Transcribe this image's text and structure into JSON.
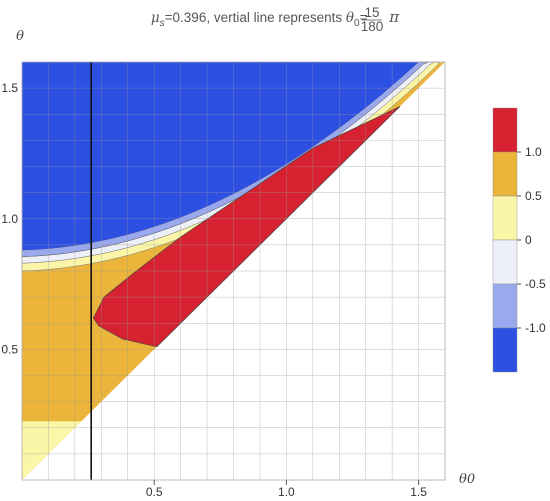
{
  "title": {
    "mu_symbol": "μ",
    "mu_subscript": "s",
    "mu_value": "=0.396, vertial line represents ",
    "theta_symbol": "θ",
    "theta_subscript": "0",
    "equals": "=",
    "frac_num": "15",
    "frac_den": "180",
    "pi": "π"
  },
  "chart_data": {
    "type": "contour",
    "xlabel": "θ0",
    "ylabel": "θ",
    "xlim": [
      0,
      1.6
    ],
    "ylim": [
      0,
      1.6
    ],
    "x_ticks": [
      "0.5",
      "1.0",
      "1.5"
    ],
    "x_tick_values": [
      0.5,
      1.0,
      1.5
    ],
    "y_ticks": [
      "0.5",
      "1.0",
      "1.5"
    ],
    "y_tick_values": [
      0.5,
      1.0,
      1.5
    ],
    "grid": true,
    "vertical_line_x": 0.2618,
    "legend": {
      "placement": "right",
      "levels": [
        "1.0",
        "0.5",
        "0",
        "-0.5",
        "-1.0"
      ],
      "level_values": [
        1.0,
        0.5,
        0,
        -0.5,
        -1.0
      ],
      "colors": [
        "#d62230",
        "#ebb43a",
        "#fbf5a8",
        "#eef0f8",
        "#9aa9ee",
        "#2d50e3"
      ]
    },
    "regions": [
      {
        "band": "below -1.0",
        "color": "#2d50e3",
        "shape": "upper-left region above θ ≈ 0.87 + 0.55·θ0²-like curve"
      },
      {
        "band": "-1.0 to 0.5 (thin bands)",
        "colors": [
          "#9aa9ee",
          "#eef0f8",
          "#fbf5a8"
        ]
      },
      {
        "band": "0.5 to 1.0",
        "color": "#ebb43a",
        "shape": "region between diagonal θ = θ0 and blue boundary"
      },
      {
        "band": "above 1.0",
        "color": "#d62230",
        "shape": "wedge from (0.27, 0.62) to (1.43, 1.43)"
      },
      {
        "band": "0 to 0.5",
        "color": "#fbf5a8",
        "shape": "small triangle near origin below θ ≈ 0.23"
      }
    ]
  }
}
